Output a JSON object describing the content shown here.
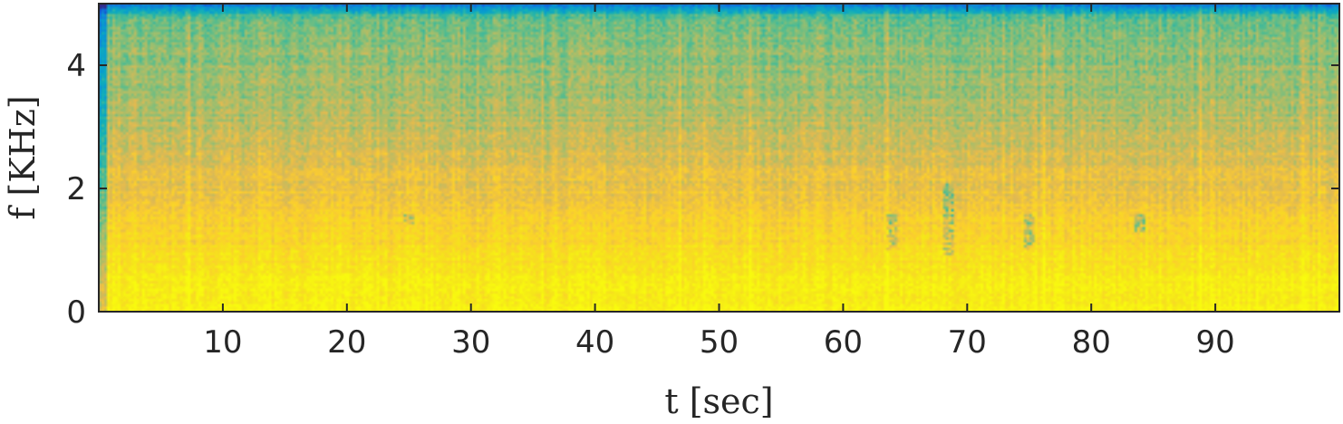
{
  "chart_data": {
    "type": "heatmap",
    "subtype": "spectrogram",
    "colormap": "parula",
    "xlabel": "t [sec]",
    "ylabel": "f [KHz]",
    "xlim": [
      0,
      100
    ],
    "ylim": [
      0,
      5
    ],
    "xticks": [
      10,
      20,
      30,
      40,
      50,
      60,
      70,
      80,
      90
    ],
    "yticks": [
      0,
      2,
      4
    ],
    "grid": false,
    "intensity_profile": {
      "description_units": "normalized colormap level (0=dark blue, 1=yellow)",
      "freq_khz": [
        0.0,
        0.5,
        1.0,
        1.5,
        2.0,
        2.5,
        3.0,
        3.5,
        4.0,
        4.5,
        4.8,
        5.0
      ],
      "level": [
        0.95,
        0.93,
        0.86,
        0.8,
        0.74,
        0.7,
        0.64,
        0.6,
        0.58,
        0.56,
        0.5,
        0.15
      ]
    },
    "low_energy_features": [
      {
        "t": 68.5,
        "f_range": [
          0.9,
          2.1
        ]
      },
      {
        "t": 64.0,
        "f_range": [
          1.0,
          1.6
        ]
      },
      {
        "t": 75.0,
        "f_range": [
          1.0,
          1.6
        ]
      },
      {
        "t": 84.0,
        "f_range": [
          1.3,
          1.6
        ]
      },
      {
        "t": 25.0,
        "f_range": [
          1.4,
          1.6
        ]
      }
    ]
  }
}
